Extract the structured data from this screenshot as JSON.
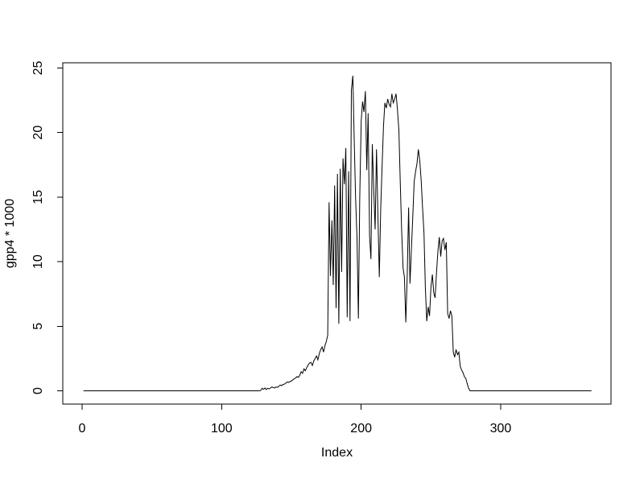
{
  "window": {
    "background": "#ffffff"
  },
  "chart_data": {
    "type": "line",
    "title": "",
    "xlabel": "Index",
    "ylabel": "gpp4 * 1000",
    "x_ticks": [
      0,
      100,
      200,
      300
    ],
    "y_ticks": [
      0,
      5,
      10,
      15,
      20,
      25
    ],
    "xlim": [
      -13.6,
      379.6
    ],
    "ylim": [
      -1.0,
      26.4
    ],
    "x_start": 1,
    "n_points": 365,
    "grid": false,
    "legend": "none",
    "line_color": "#000000",
    "axis_color": "#000000",
    "background": "#ffffff",
    "series": [
      {
        "name": "gpp4 * 1000",
        "values": [
          0,
          0,
          0,
          0,
          0,
          0,
          0,
          0,
          0,
          0,
          0,
          0,
          0,
          0,
          0,
          0,
          0,
          0,
          0,
          0,
          0,
          0,
          0,
          0,
          0,
          0,
          0,
          0,
          0,
          0,
          0,
          0,
          0,
          0,
          0,
          0,
          0,
          0,
          0,
          0,
          0,
          0,
          0,
          0,
          0,
          0,
          0,
          0,
          0,
          0,
          0,
          0,
          0,
          0,
          0,
          0,
          0,
          0,
          0,
          0,
          0,
          0,
          0,
          0,
          0,
          0,
          0,
          0,
          0,
          0,
          0,
          0,
          0,
          0,
          0,
          0,
          0,
          0,
          0,
          0,
          0,
          0,
          0,
          0,
          0,
          0,
          0,
          0,
          0,
          0,
          0,
          0,
          0,
          0,
          0,
          0,
          0,
          0,
          0,
          0,
          0,
          0,
          0,
          0,
          0,
          0,
          0,
          0,
          0,
          0,
          0,
          0,
          0,
          0,
          0,
          0,
          0,
          0,
          0,
          0,
          0,
          0,
          0,
          0,
          0,
          0,
          0,
          0.03,
          0.2,
          0.12,
          0.22,
          0.1,
          0.2,
          0.15,
          0.22,
          0.3,
          0.25,
          0.22,
          0.3,
          0.27,
          0.35,
          0.45,
          0.4,
          0.5,
          0.52,
          0.6,
          0.68,
          0.65,
          0.72,
          0.75,
          0.85,
          0.93,
          1.0,
          1.1,
          1.05,
          1.2,
          1.48,
          1.35,
          1.7,
          1.55,
          1.8,
          2.0,
          2.15,
          2.2,
          1.96,
          2.3,
          2.5,
          2.7,
          2.4,
          2.9,
          3.2,
          3.4,
          3.0,
          3.5,
          3.8,
          4.3,
          14.6,
          8.9,
          13.2,
          8.2,
          15.9,
          6.4,
          16.8,
          5.2,
          17.2,
          9.2,
          18.0,
          16.0,
          18.8,
          5.7,
          17.0,
          5.4,
          23.3,
          24.4,
          19.5,
          15.0,
          11.8,
          5.6,
          15.0,
          20.9,
          22.4,
          21.6,
          23.2,
          17.1,
          21.5,
          12.0,
          10.2,
          19.1,
          15.5,
          12.5,
          18.7,
          13.5,
          8.8,
          14.0,
          17.5,
          20.5,
          22.3,
          21.9,
          22.6,
          22.2,
          22.0,
          23.0,
          22.3,
          22.6,
          23.0,
          21.8,
          20.2,
          16.2,
          12.5,
          9.5,
          8.8,
          5.3,
          9.0,
          14.2,
          8.3,
          11.0,
          13.5,
          16.2,
          17.0,
          17.6,
          18.7,
          17.8,
          16.3,
          14.2,
          12.2,
          8.0,
          5.4,
          6.5,
          5.8,
          8.0,
          9.0,
          7.6,
          7.2,
          9.2,
          10.8,
          11.9,
          10.4,
          11.6,
          11.8,
          10.9,
          11.5,
          6.0,
          5.6,
          6.2,
          5.8,
          3.0,
          2.6,
          3.2,
          2.8,
          3.0,
          1.9,
          1.6,
          1.4,
          1.1,
          0.95,
          0.55,
          0.2,
          0,
          0,
          0,
          0,
          0,
          0,
          0,
          0,
          0,
          0,
          0,
          0,
          0,
          0,
          0,
          0,
          0,
          0,
          0,
          0,
          0,
          0,
          0,
          0,
          0,
          0,
          0,
          0,
          0,
          0,
          0,
          0,
          0,
          0,
          0,
          0,
          0,
          0,
          0,
          0,
          0,
          0,
          0,
          0,
          0,
          0,
          0,
          0,
          0,
          0,
          0,
          0,
          0,
          0,
          0,
          0,
          0,
          0,
          0,
          0,
          0,
          0,
          0,
          0,
          0,
          0,
          0,
          0,
          0,
          0,
          0,
          0,
          0,
          0,
          0,
          0,
          0,
          0,
          0,
          0,
          0,
          0,
          0,
          0,
          0,
          0,
          0,
          0
        ]
      }
    ]
  }
}
